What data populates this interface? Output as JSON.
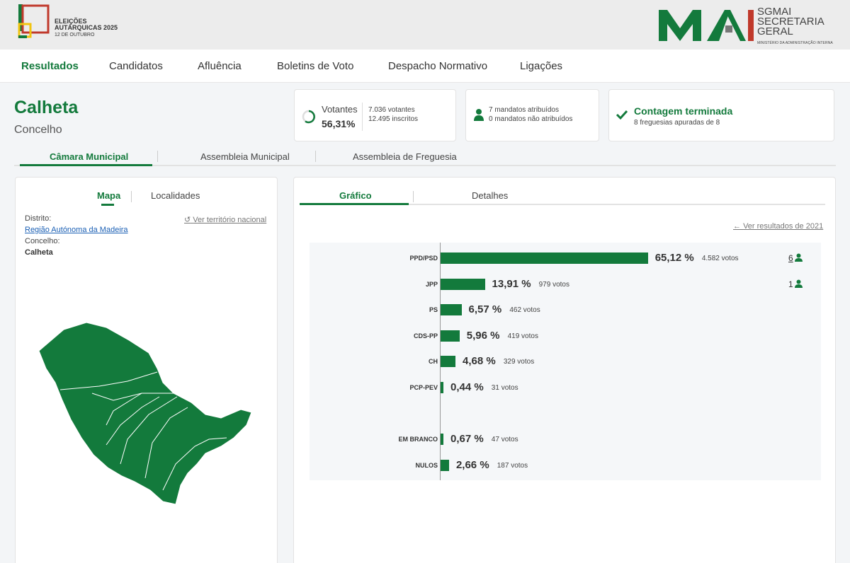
{
  "header": {
    "logo_title_line1": "ELEIÇÕES",
    "logo_title_line2": "AUTÁRQUICAS 2025",
    "logo_date": "12 DE OUTUBRO",
    "ministry_line1": "SGMAI",
    "ministry_line2": "SECRETARIA",
    "ministry_line3": "GERAL",
    "ministry_tagline": "MINISTÉRIO DA ADMINISTRAÇÃO INTERNA"
  },
  "nav": {
    "items": [
      "Resultados",
      "Candidatos",
      "Afluência",
      "Boletins de Voto",
      "Despacho Normativo",
      "Ligações"
    ],
    "active": "Resultados"
  },
  "page": {
    "title": "Calheta",
    "subtitle": "Concelho"
  },
  "cards": {
    "votantes_label": "Votantes",
    "votantes_pct": "56,31%",
    "votantes_count": "7.036 votantes",
    "inscritos_count": "12.495 inscritos",
    "mandatos_atribuidos": "7 mandatos atribuídos",
    "mandatos_nao_atribuidos": "0 mandatos não atribuídos",
    "contagem_title": "Contagem terminada",
    "contagem_sub": "8 freguesias apuradas de 8"
  },
  "organ_tabs": [
    "Câmara Municipal",
    "Assembleia Municipal",
    "Assembleia de Freguesia"
  ],
  "left_panel": {
    "tabs": [
      "Mapa",
      "Localidades"
    ],
    "distrito_label": "Distrito:",
    "distrito_value": "Região Autónoma da Madeira",
    "concelho_label": "Concelho:",
    "concelho_value": "Calheta",
    "national_link": "Ver território nacional"
  },
  "right_panel": {
    "tabs": [
      "Gráfico",
      "Detalhes"
    ],
    "previous_link": "Ver resultados de 2021"
  },
  "colors": {
    "accent": "#137a3c",
    "map_fill": "#137a3c"
  },
  "chart_data": {
    "type": "bar",
    "orientation": "horizontal",
    "categories": [
      "PPD/PSD",
      "JPP",
      "PS",
      "CDS-PP",
      "CH",
      "PCP-PEV",
      "EM BRANCO",
      "NULOS"
    ],
    "values": [
      65.12,
      13.91,
      6.57,
      5.96,
      4.68,
      0.44,
      0.67,
      2.66
    ],
    "pct_labels": [
      "65,12 %",
      "13,91 %",
      "6,57 %",
      "5,96 %",
      "4,68 %",
      "0,44 %",
      "0,67 %",
      "2,66 %"
    ],
    "votes_labels": [
      "4.582 votos",
      "979 votos",
      "462 votos",
      "419 votos",
      "329 votos",
      "31 votos",
      "47 votos",
      "187 votos"
    ],
    "seats": [
      "6",
      "1",
      "",
      "",
      "",
      "",
      "",
      ""
    ],
    "xlim": [
      0,
      100
    ]
  }
}
